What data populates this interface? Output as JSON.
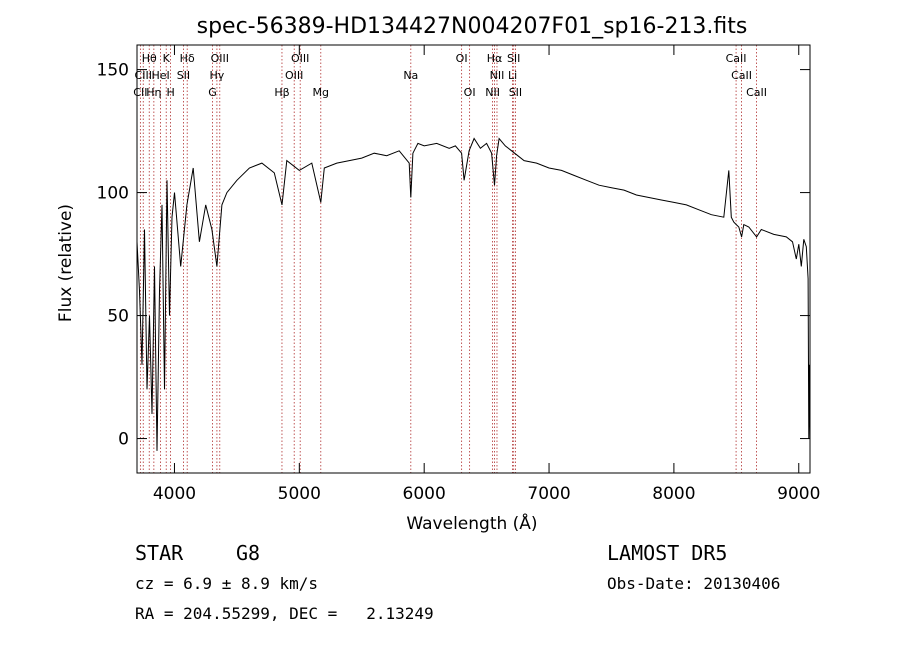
{
  "chart_data": {
    "type": "line",
    "title": "spec-56389-HD134427N004207F01_sp16-213.fits",
    "xlabel": "Wavelength (Å)",
    "ylabel": "Flux (relative)",
    "xlim": [
      3700,
      9090
    ],
    "ylim": [
      -14,
      160
    ],
    "x_ticks": [
      4000,
      5000,
      6000,
      7000,
      8000,
      9000
    ],
    "y_ticks": [
      0,
      50,
      100,
      150
    ],
    "grid": false,
    "series": [
      {
        "x": [
          3700,
          3720,
          3740,
          3760,
          3780,
          3800,
          3820,
          3840,
          3860,
          3880,
          3900,
          3920,
          3940,
          3960,
          3980,
          4000,
          4050,
          4100,
          4150,
          4200,
          4250,
          4300,
          4340,
          4380,
          4420,
          4500,
          4600,
          4700,
          4800,
          4861,
          4900,
          5000,
          5100,
          5172,
          5200,
          5300,
          5400,
          5500,
          5600,
          5700,
          5800,
          5880,
          5893,
          5910,
          5950,
          6000,
          6100,
          6200,
          6250,
          6300,
          6320,
          6360,
          6400,
          6450,
          6500,
          6540,
          6563,
          6580,
          6600,
          6650,
          6700,
          6750,
          6800,
          6900,
          7000,
          7100,
          7200,
          7300,
          7400,
          7500,
          7600,
          7700,
          7800,
          7900,
          8000,
          8100,
          8200,
          8300,
          8400,
          8440,
          8460,
          8480,
          8500,
          8520,
          8542,
          8560,
          8600,
          8662,
          8700,
          8800,
          8900,
          8950,
          8980,
          9000,
          9020,
          9040,
          9060,
          9075,
          9080,
          9085,
          9090
        ],
        "y": [
          80,
          60,
          30,
          85,
          20,
          50,
          10,
          70,
          -5,
          60,
          95,
          20,
          105,
          50,
          90,
          100,
          70,
          95,
          110,
          80,
          95,
          85,
          70,
          95,
          100,
          105,
          110,
          112,
          108,
          95,
          113,
          109,
          112,
          96,
          110,
          112,
          113,
          114,
          116,
          115,
          117,
          112,
          98,
          116,
          120,
          119,
          120,
          118,
          119,
          116,
          105,
          117,
          122,
          118,
          120,
          116,
          103,
          115,
          122,
          119,
          117,
          115,
          113,
          112,
          110,
          109,
          107,
          105,
          103,
          102,
          101,
          99,
          98,
          97,
          96,
          95,
          93,
          91,
          90,
          109,
          90,
          88,
          87,
          86,
          82,
          87,
          86,
          82,
          85,
          83,
          82,
          80,
          73,
          79,
          70,
          81,
          78,
          65,
          0,
          30,
          0
        ]
      }
    ],
    "lines_top": [
      {
        "label": "Hθ",
        "x": 3798
      },
      {
        "label": "K",
        "x": 3934
      },
      {
        "label": "Hδ",
        "x": 4102
      },
      {
        "label": "OIII",
        "x": 4363
      },
      {
        "label": "OIII",
        "x": 5007
      },
      {
        "label": "OI",
        "x": 6300
      },
      {
        "label": "Hα",
        "x": 6563
      },
      {
        "label": "SII",
        "x": 6717
      },
      {
        "label": "CaII",
        "x": 8498
      }
    ],
    "lines_mid": [
      {
        "label": "CIII",
        "x": 3750
      },
      {
        "label": "HeI",
        "x": 3889
      },
      {
        "label": "SII",
        "x": 4072
      },
      {
        "label": "Hγ",
        "x": 4340
      },
      {
        "label": "OIII",
        "x": 4959
      },
      {
        "label": "Na",
        "x": 5893
      },
      {
        "label": "NII",
        "x": 6583
      },
      {
        "label": "Li",
        "x": 6708
      },
      {
        "label": "CaII",
        "x": 8542
      }
    ],
    "lines_bot": [
      {
        "label": "CII",
        "x": 3727
      },
      {
        "label": "Hη",
        "x": 3835
      },
      {
        "label": "H",
        "x": 3969
      },
      {
        "label": "G",
        "x": 4305
      },
      {
        "label": "Hβ",
        "x": 4861
      },
      {
        "label": "Mg",
        "x": 5172
      },
      {
        "label": "OI",
        "x": 6364
      },
      {
        "label": "NII",
        "x": 6548
      },
      {
        "label": "SII",
        "x": 6731
      },
      {
        "label": "CaII",
        "x": 8662
      }
    ],
    "line_color": "#b03030"
  },
  "info": {
    "class": "STAR",
    "subclass": "G8",
    "survey": "LAMOST DR5",
    "cz": "cz = 6.9 ± 8.9 km/s",
    "obs_date": "Obs-Date: 20130406",
    "coords": "RA = 204.55299, DEC =   2.13249"
  }
}
